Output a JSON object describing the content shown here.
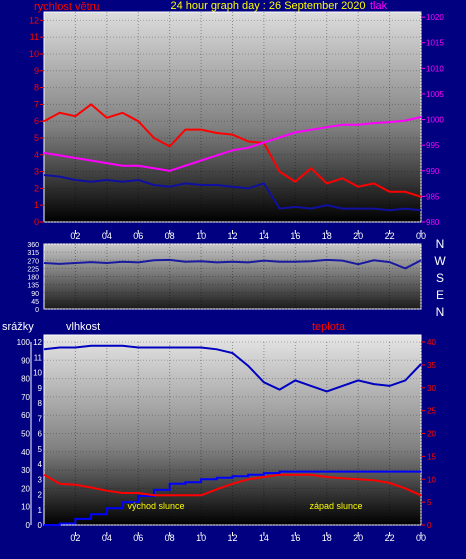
{
  "header": {
    "title": "24 hour graph day :  26 September 2020",
    "left_label": "rychlost větru",
    "right_label": "tlak"
  },
  "colors": {
    "background": "#000080",
    "frame": "#ffffff",
    "wind_speed": "#ff0000",
    "wind_gust_avg": "#1010a0",
    "pressure": "#ff00ff",
    "title": "#ffff00",
    "direction": "#1a1aa0",
    "humidity": "#0000c0",
    "temperature": "#ff0000",
    "rain": "#0000ff",
    "sun_label": "#ffff00",
    "right_axis": "#ff0000",
    "pressure_axis": "#ff00ff"
  },
  "x_ticks": [
    "02",
    "04",
    "06",
    "08",
    "10",
    "12",
    "14",
    "16",
    "18",
    "20",
    "22",
    "00"
  ],
  "chart_data": [
    {
      "type": "line",
      "panel": "wind_pressure",
      "left_axis_label": "rychlost větru",
      "right_axis_label": "tlak",
      "left_ylim": [
        0,
        12.5
      ],
      "left_ticks": [
        0,
        1,
        2,
        3,
        4,
        5,
        6,
        7,
        8,
        9,
        10,
        11,
        12
      ],
      "right_ylim": [
        980,
        1021
      ],
      "right_ticks": [
        980,
        985,
        990,
        995,
        1000,
        1005,
        1010,
        1015,
        1020
      ],
      "x": [
        0,
        1,
        2,
        3,
        4,
        5,
        6,
        7,
        8,
        9,
        10,
        11,
        12,
        13,
        14,
        15,
        16,
        17,
        18,
        19,
        20,
        21,
        22,
        23,
        24
      ],
      "series": [
        {
          "values": [
            6.0,
            6.5,
            6.3,
            7.0,
            6.2,
            6.5,
            6.0,
            5.0,
            4.5,
            5.5,
            5.5,
            5.3,
            5.2,
            4.8,
            4.7,
            3.0,
            2.4,
            3.2,
            2.3,
            2.6,
            2.1,
            2.3,
            1.8,
            1.8,
            1.5
          ]
        },
        {
          "values": [
            2.8,
            2.7,
            2.5,
            2.4,
            2.5,
            2.4,
            2.5,
            2.2,
            2.1,
            2.3,
            2.2,
            2.2,
            2.1,
            2.0,
            2.3,
            0.8,
            0.9,
            0.8,
            1.0,
            0.8,
            0.8,
            0.8,
            0.7,
            0.8,
            0.7
          ]
        },
        {
          "axis": "right",
          "values": [
            993.5,
            993.0,
            992.5,
            992.0,
            991.5,
            991.0,
            991.0,
            990.5,
            990.0,
            991.0,
            992.0,
            993.0,
            994.0,
            994.5,
            995.5,
            996.5,
            997.5,
            998.0,
            998.5,
            999.0,
            999.0,
            999.3,
            999.5,
            999.8,
            1000.5
          ]
        }
      ]
    },
    {
      "type": "line",
      "panel": "wind_direction",
      "right_axis_labels": [
        "N",
        "W",
        "S",
        "E",
        "N"
      ],
      "left_ylim": [
        0,
        360
      ],
      "left_ticks": [
        0,
        45,
        90,
        135,
        180,
        225,
        270,
        315,
        360
      ],
      "x": [
        0,
        1,
        2,
        3,
        4,
        5,
        6,
        7,
        8,
        9,
        10,
        11,
        12,
        13,
        14,
        15,
        16,
        17,
        18,
        19,
        20,
        21,
        22,
        23,
        24
      ],
      "series": [
        {
          "values": [
            255,
            250,
            255,
            260,
            255,
            262,
            258,
            270,
            272,
            262,
            265,
            258,
            262,
            258,
            268,
            262,
            262,
            265,
            272,
            268,
            248,
            270,
            260,
            225,
            270
          ]
        }
      ]
    },
    {
      "type": "line",
      "panel": "rain_humidity_temperature",
      "left_axis_label": "srážky",
      "middle_axis_label": "vlhkost",
      "right_axis_label": "teplota",
      "rain_ylim": [
        0,
        12
      ],
      "rain_ticks": [
        0,
        1,
        2,
        3,
        4,
        5,
        6,
        7,
        8,
        9,
        10,
        11,
        12
      ],
      "humidity_ylim": [
        0,
        100
      ],
      "humidity_ticks": [
        0,
        10,
        20,
        30,
        40,
        50,
        60,
        70,
        80,
        90,
        100
      ],
      "temp_ylim": [
        0,
        40
      ],
      "temp_ticks": [
        0,
        5,
        10,
        15,
        20,
        25,
        30,
        35,
        40
      ],
      "annotations": [
        "východ slunce",
        "západ slunce"
      ],
      "x": [
        0,
        1,
        2,
        3,
        4,
        5,
        6,
        7,
        8,
        9,
        10,
        11,
        12,
        13,
        14,
        15,
        16,
        17,
        18,
        19,
        20,
        21,
        22,
        23,
        24
      ],
      "series": [
        {
          "axis": "humidity",
          "values": [
            96,
            97,
            97,
            98,
            98,
            98,
            97,
            97,
            97,
            97,
            97,
            96,
            94,
            87,
            78,
            74,
            79,
            76,
            73,
            76,
            79,
            77,
            76,
            79,
            88
          ]
        },
        {
          "axis": "temp",
          "values": [
            11.0,
            9.0,
            8.8,
            8.2,
            7.5,
            7.0,
            7.0,
            6.5,
            6.5,
            6.5,
            6.5,
            7.8,
            9.0,
            10.0,
            10.5,
            11.0,
            11.0,
            11.0,
            10.5,
            10.2,
            10.0,
            9.8,
            9.2,
            8.0,
            6.5
          ]
        },
        {
          "axis": "rain",
          "values": [
            0.0,
            0.1,
            0.4,
            0.7,
            1.1,
            1.5,
            1.9,
            2.3,
            2.7,
            2.8,
            3.0,
            3.1,
            3.2,
            3.3,
            3.4,
            3.5,
            3.5,
            3.5,
            3.5,
            3.5,
            3.5,
            3.5,
            3.5,
            3.5,
            3.5
          ]
        }
      ]
    }
  ]
}
